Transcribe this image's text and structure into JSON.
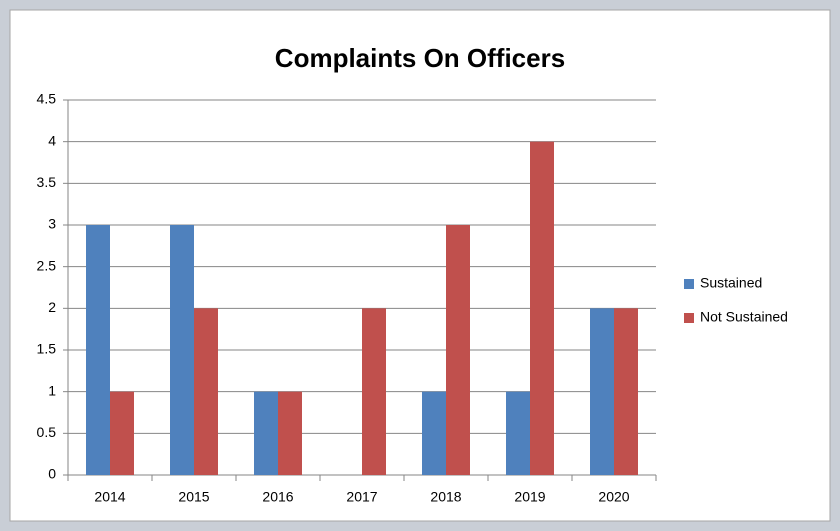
{
  "chart_data": {
    "type": "bar",
    "title": "Complaints On Officers",
    "categories": [
      "2014",
      "2015",
      "2016",
      "2017",
      "2018",
      "2019",
      "2020"
    ],
    "series": [
      {
        "name": "Sustained",
        "color": "#4f81bd",
        "values": [
          3,
          3,
          1,
          0,
          1,
          1,
          2
        ]
      },
      {
        "name": "Not Sustained",
        "color": "#c0504d",
        "values": [
          1,
          2,
          1,
          2,
          3,
          4,
          2
        ]
      }
    ],
    "ylim": [
      0,
      4.5
    ],
    "yticks": [
      0,
      0.5,
      1,
      1.5,
      2,
      2.5,
      3,
      3.5,
      4,
      4.5
    ],
    "grid": true,
    "legend": "right"
  }
}
